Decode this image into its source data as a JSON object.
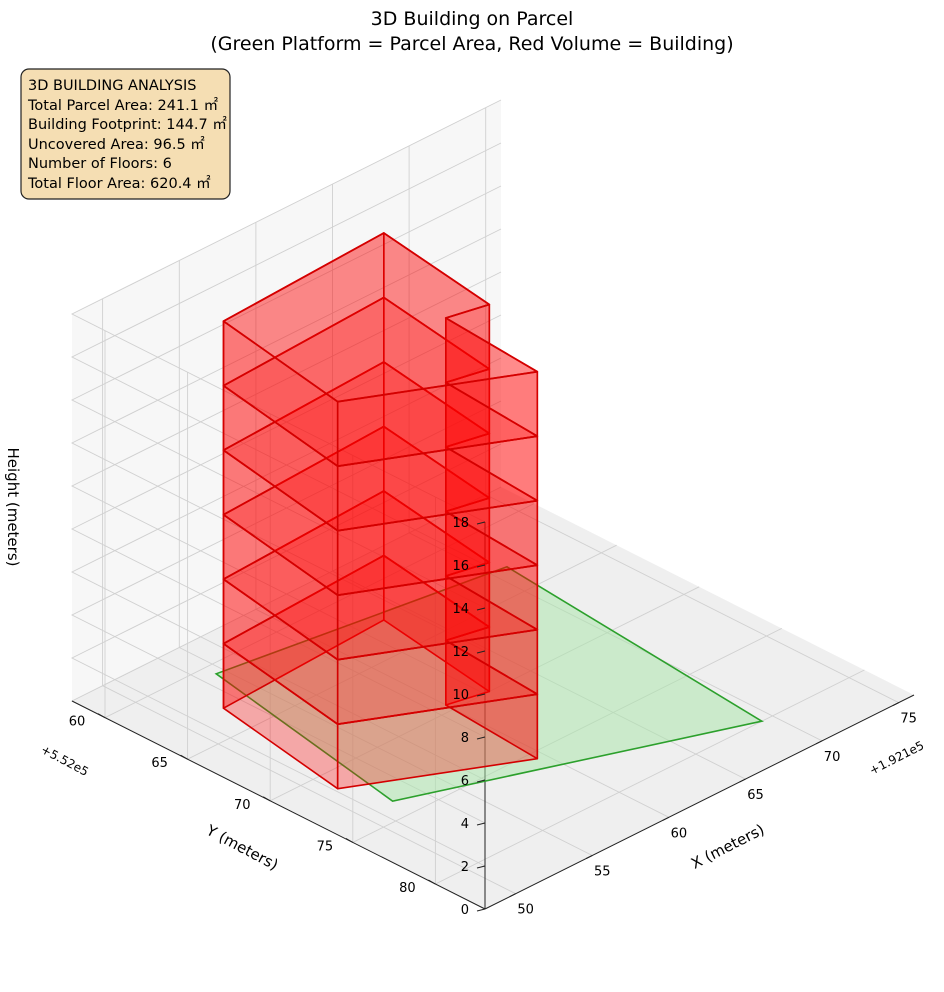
{
  "chart_data": {
    "type": "3d-volume",
    "title": [
      "3D Building on Parcel",
      "(Green Platform = Parcel Area, Red Volume = Building)"
    ],
    "xlabel": "X (meters)",
    "ylabel": "Y (meters)",
    "zlabel": "Height (meters)",
    "x_offset": "+1.921e5",
    "y_offset": "+5.52e5",
    "xticks": [
      "50",
      "55",
      "60",
      "65",
      "70",
      "75"
    ],
    "yticks": [
      "60",
      "65",
      "70",
      "75",
      "80"
    ],
    "zticks": [
      "0",
      "2",
      "4",
      "6",
      "8",
      "10",
      "12",
      "14",
      "16",
      "18"
    ],
    "xlim": [
      48,
      76
    ],
    "ylim": [
      58,
      83
    ],
    "zlim": [
      0,
      18
    ],
    "grid": true,
    "colors": {
      "parcel_fill": "#a8e6a8",
      "parcel_edge": "#2ca02c",
      "building_fill": "#ff0000",
      "building_edge": "#d40000",
      "pane": "#f2f2f2",
      "grid": "#d0d0d0"
    },
    "parcel": {
      "name": "Parcel Area",
      "area_m2": 241.1,
      "polygon": [
        [
          54.5,
          60.7
        ],
        [
          52.0,
          73.7
        ],
        [
          69.3,
          80.0
        ],
        [
          71.0,
          63.0
        ]
      ]
    },
    "building": {
      "name": "Building",
      "footprint_m2": 144.7,
      "floors": 6,
      "total_floor_area_m2": 620.4,
      "footprint": [
        [
          52.5,
          63.0
        ],
        [
          51.0,
          71.3
        ],
        [
          59.5,
          75.5
        ],
        [
          60.0,
          69.5
        ],
        [
          62.3,
          70.0
        ],
        [
          63.5,
          62.5
        ]
      ],
      "floor_heights": [
        0,
        3,
        6,
        9,
        12,
        15,
        18
      ]
    }
  },
  "info_box": {
    "lines": [
      "3D BUILDING ANALYSIS",
      "Total Parcel Area: 241.1 ㎡",
      "Building Footprint: 144.7 ㎡",
      "Uncovered Area: 96.5 ㎡",
      "Number of Floors: 6",
      "Total Floor Area: 620.4 ㎡"
    ]
  }
}
